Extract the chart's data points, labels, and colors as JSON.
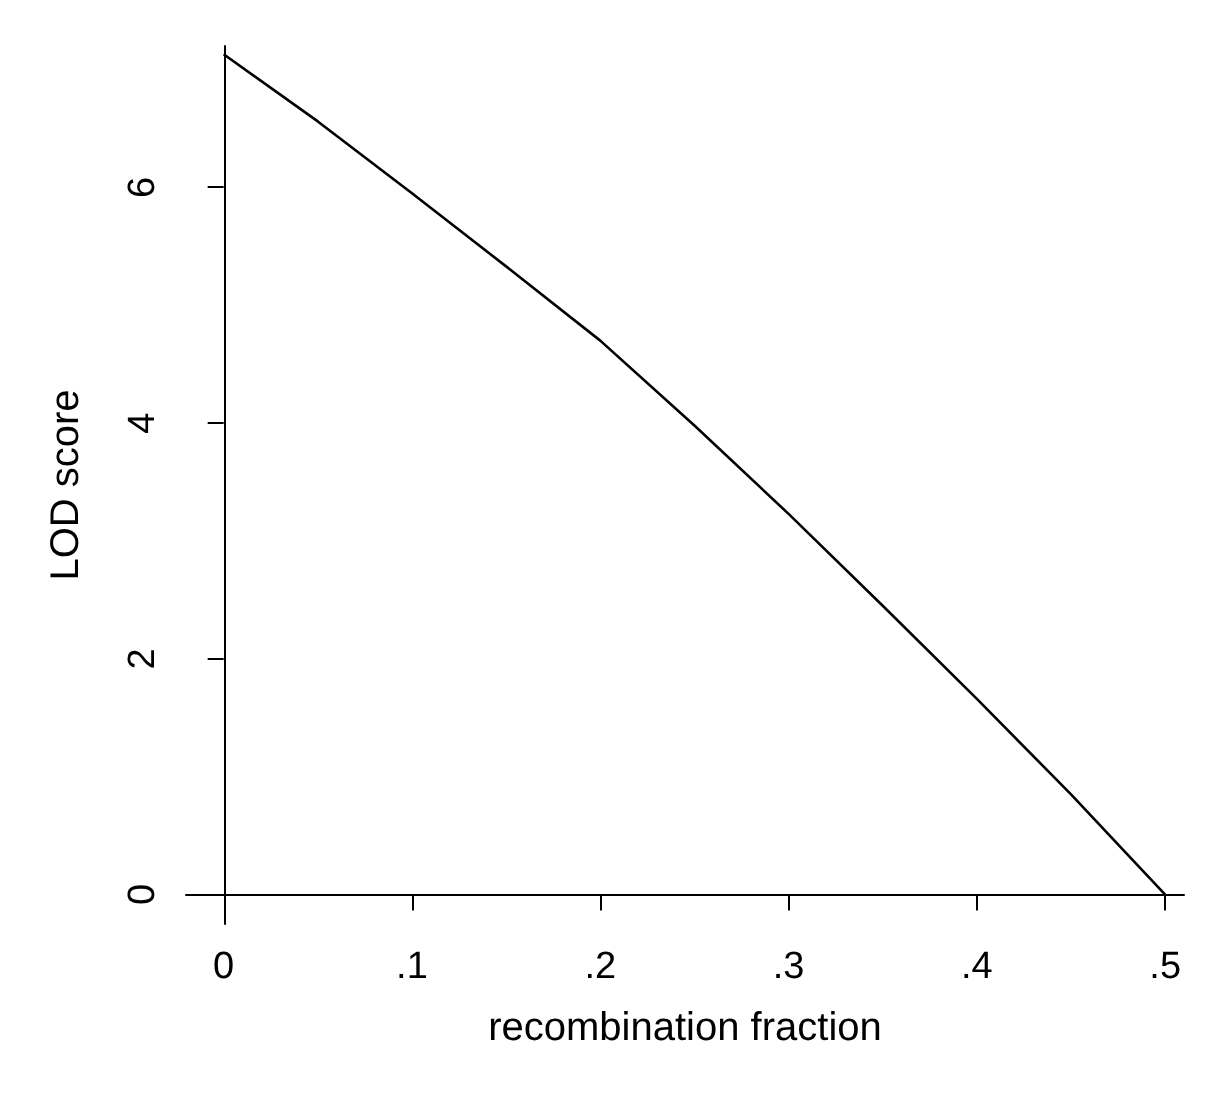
{
  "chart_data": {
    "type": "line",
    "xlabel": "recombination fraction",
    "ylabel": "LOD score",
    "x": [
      0,
      0.05,
      0.1,
      0.15,
      0.2,
      0.25,
      0.3,
      0.35,
      0.4,
      0.45,
      0.5
    ],
    "series": [
      {
        "color": "#000000",
        "values": [
          7.13,
          6.56,
          5.95,
          5.33,
          4.7,
          3.98,
          3.23,
          2.45,
          1.66,
          0.85,
          0
        ]
      }
    ],
    "xlim": [
      -0.02,
      0.51
    ],
    "xticks": [
      0,
      {
        "value": 0.1,
        "label": ".1"
      },
      {
        "value": 0.2,
        "label": ".2"
      },
      {
        "value": 0.3,
        "label": ".3"
      },
      {
        "value": 0.4,
        "label": ".4"
      },
      {
        "value": 0.5,
        "label": ".5"
      }
    ],
    "ylim": [
      -0.25,
      7.2
    ],
    "yticks": [
      0,
      2,
      4,
      6
    ],
    "grid": false,
    "marker": "none",
    "line_style": "solid"
  }
}
